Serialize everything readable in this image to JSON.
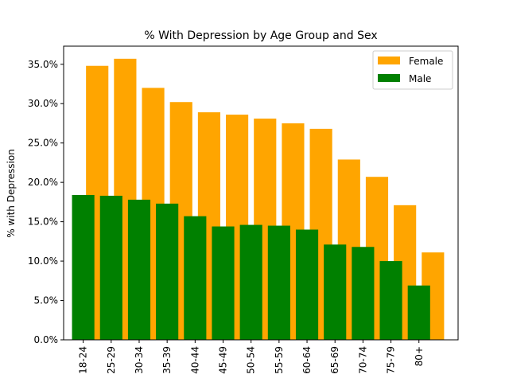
{
  "chart_data": {
    "type": "bar",
    "title": "% With Depression by Age Group and Sex",
    "xlabel": "",
    "ylabel": "% with Depression",
    "categories": [
      "18-24",
      "25-29",
      "30-34",
      "35-39",
      "40-44",
      "45-49",
      "50-54",
      "55-59",
      "60-64",
      "65-69",
      "70-74",
      "75-79",
      "80+"
    ],
    "series": [
      {
        "name": "Female",
        "color": "#ffa500",
        "values": [
          34.8,
          35.7,
          32.0,
          30.2,
          28.9,
          28.6,
          28.1,
          27.5,
          26.8,
          22.9,
          20.7,
          17.1,
          11.1
        ]
      },
      {
        "name": "Male",
        "color": "#008000",
        "values": [
          18.4,
          18.3,
          17.8,
          17.3,
          15.7,
          14.4,
          14.6,
          14.5,
          14.0,
          12.1,
          11.8,
          10.0,
          6.9
        ]
      }
    ],
    "ylim": [
      0,
      37.3
    ],
    "yticks": [
      0,
      5,
      10,
      15,
      20,
      25,
      30,
      35
    ],
    "ytick_labels": [
      "0.0%",
      "5.0%",
      "10.0%",
      "15.0%",
      "20.0%",
      "25.0%",
      "30.0%",
      "35.0%"
    ],
    "legend_position": "top-right",
    "grid": false
  }
}
